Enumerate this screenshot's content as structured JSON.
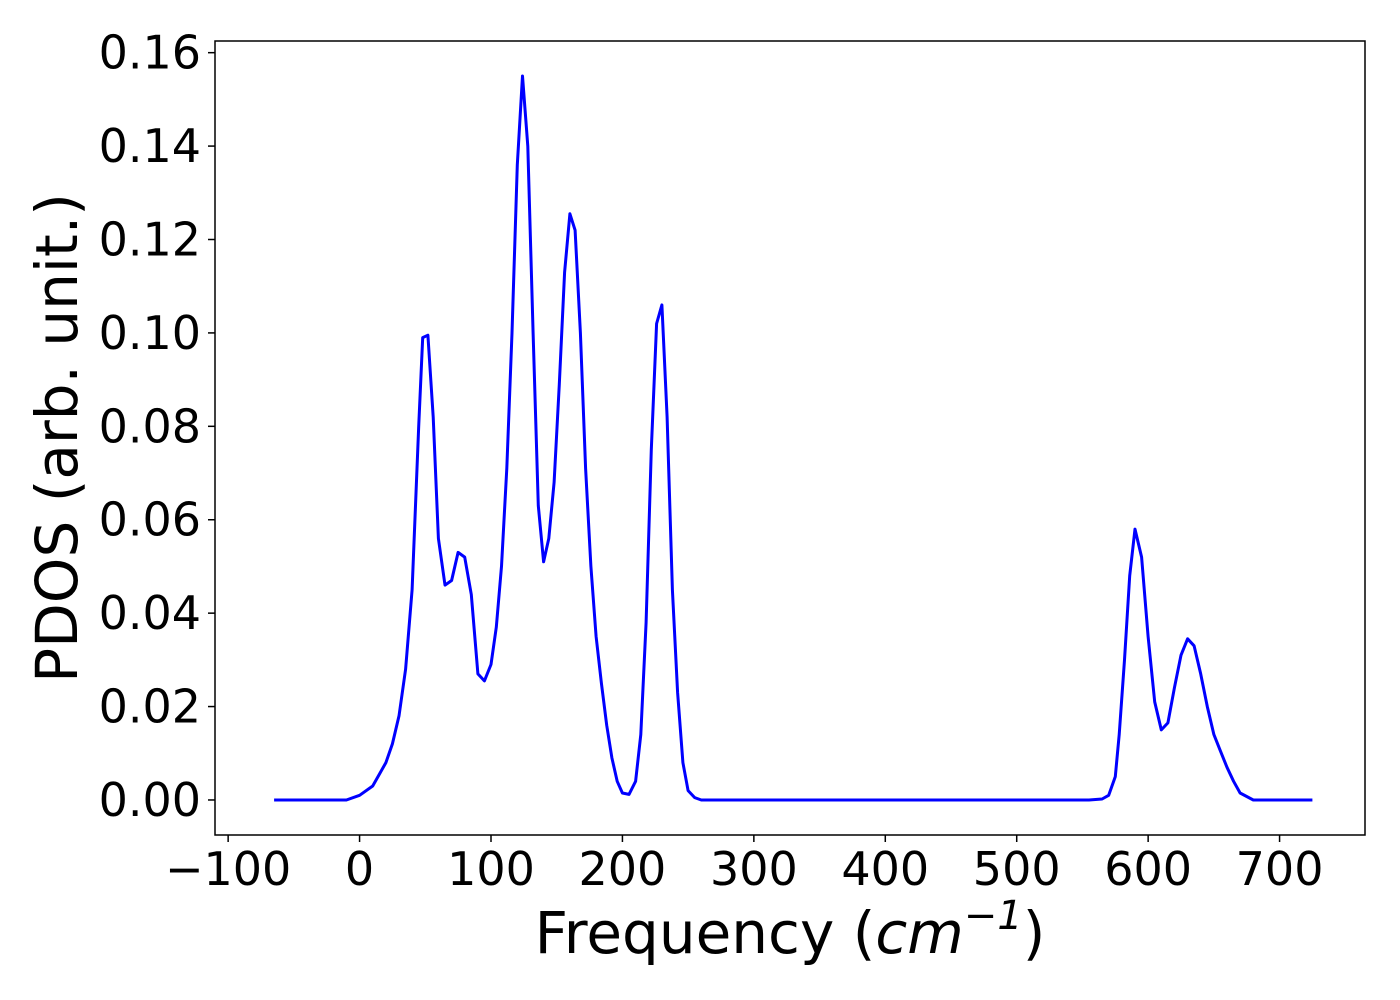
{
  "chart_data": {
    "type": "line",
    "xlabel_prefix": "Frequency (",
    "xlabel_unit_base": "cm",
    "xlabel_unit_exp": "−1",
    "xlabel_suffix": ")",
    "ylabel": "PDOS (arb. unit.)",
    "xlim": [
      -110,
      765
    ],
    "ylim": [
      -0.0075,
      0.1625
    ],
    "x_ticks": [
      -100,
      0,
      100,
      200,
      300,
      400,
      500,
      600,
      700
    ],
    "x_tick_labels": [
      "−100",
      "0",
      "100",
      "200",
      "300",
      "400",
      "500",
      "600",
      "700"
    ],
    "y_ticks": [
      0.0,
      0.02,
      0.04,
      0.06,
      0.08,
      0.1,
      0.12,
      0.14,
      0.16
    ],
    "y_tick_labels": [
      "0.00",
      "0.02",
      "0.04",
      "0.06",
      "0.08",
      "0.10",
      "0.12",
      "0.14",
      "0.16"
    ],
    "grid": false,
    "series": [
      {
        "color": "#0000ff",
        "x": [
          -65,
          -10,
          0,
          10,
          20,
          25,
          30,
          35,
          40,
          45,
          48,
          52,
          56,
          60,
          65,
          70,
          75,
          80,
          85,
          90,
          95,
          100,
          104,
          108,
          112,
          116,
          120,
          124,
          128,
          132,
          136,
          140,
          144,
          148,
          152,
          156,
          160,
          164,
          168,
          172,
          176,
          180,
          184,
          188,
          192,
          196,
          200,
          205,
          210,
          214,
          218,
          222,
          226,
          230,
          234,
          238,
          242,
          246,
          250,
          255,
          260,
          300,
          400,
          500,
          555,
          565,
          570,
          575,
          578,
          582,
          586,
          590,
          595,
          600,
          605,
          610,
          615,
          620,
          625,
          630,
          635,
          640,
          645,
          650,
          655,
          660,
          665,
          670,
          680,
          725
        ],
        "y": [
          0.0,
          0.0,
          0.001,
          0.003,
          0.008,
          0.012,
          0.018,
          0.028,
          0.045,
          0.08,
          0.099,
          0.0995,
          0.082,
          0.056,
          0.046,
          0.047,
          0.053,
          0.052,
          0.044,
          0.027,
          0.0255,
          0.029,
          0.037,
          0.05,
          0.071,
          0.1,
          0.136,
          0.155,
          0.14,
          0.1,
          0.063,
          0.051,
          0.056,
          0.068,
          0.089,
          0.113,
          0.1255,
          0.122,
          0.1,
          0.071,
          0.05,
          0.035,
          0.025,
          0.016,
          0.009,
          0.004,
          0.0015,
          0.0012,
          0.004,
          0.014,
          0.038,
          0.075,
          0.102,
          0.106,
          0.082,
          0.045,
          0.023,
          0.008,
          0.002,
          0.0005,
          0.0,
          0.0,
          0.0,
          0.0,
          0.0,
          0.0002,
          0.001,
          0.005,
          0.014,
          0.03,
          0.048,
          0.058,
          0.052,
          0.035,
          0.021,
          0.015,
          0.0165,
          0.024,
          0.031,
          0.0345,
          0.033,
          0.027,
          0.02,
          0.014,
          0.0105,
          0.007,
          0.004,
          0.0015,
          0.0,
          0.0
        ]
      }
    ]
  }
}
